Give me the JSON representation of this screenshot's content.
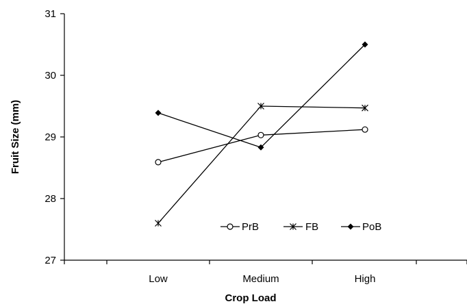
{
  "chart_data": {
    "type": "line",
    "title": "",
    "xlabel": "Crop Load",
    "ylabel": "Fruit Size (mm)",
    "categories": [
      "Low",
      "Medium",
      "High"
    ],
    "ylim": [
      27,
      31
    ],
    "yticks": [
      27,
      28,
      29,
      30,
      31
    ],
    "grid": false,
    "legend_position": "bottom-right inside plot",
    "series": [
      {
        "name": "PrB",
        "marker": "open-circle",
        "values": [
          28.59,
          29.03,
          29.12
        ]
      },
      {
        "name": "FB",
        "marker": "star",
        "values": [
          27.6,
          29.5,
          29.47
        ]
      },
      {
        "name": "PoB",
        "marker": "filled-diamond",
        "values": [
          29.39,
          28.83,
          30.5
        ]
      }
    ],
    "colors": {
      "line": "#000000",
      "axis": "#000000"
    }
  }
}
